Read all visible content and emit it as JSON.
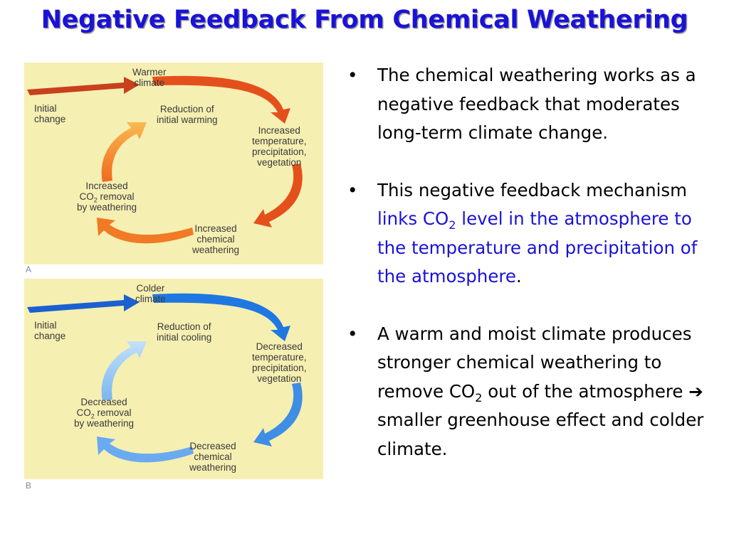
{
  "title": "Negative Feedback From Chemical Weathering",
  "colors": {
    "title": "#1a12d6",
    "highlight": "#1a12d6",
    "panel_bg": "#f6efb2",
    "warm_arrow": "#e04a18",
    "warm_arrow_light": "#f59a2a",
    "cold_arrow": "#1e74e0",
    "cold_arrow_light": "#8cc0f2"
  },
  "diagram_a": {
    "panel_label": "A",
    "initial_change": "Initial\nchange",
    "top": "Warmer\nclimate",
    "right": "Increased\ntemperature,\nprecipitation,\nvegetation",
    "bottom": "Increased\nchemical\nweathering",
    "left_prefix": "Increased\nCO",
    "left_sub": "2",
    "left_suffix": " removal\nby weathering",
    "center": "Reduction of\ninitial warming"
  },
  "diagram_b": {
    "panel_label": "B",
    "initial_change": "Initial\nchange",
    "top": "Colder\nclimate",
    "right": "Decreased\ntemperature,\nprecipitation,\nvegetation",
    "bottom": "Decreased\nchemical\nweathering",
    "left_prefix": "Decreased\nCO",
    "left_sub": "2",
    "left_suffix": " removal\nby weathering",
    "center": "Reduction of\ninitial cooling"
  },
  "bullets": {
    "b1": "The chemical weathering works as a negative feedback that moderates long-term climate change.",
    "b2_pre": "This negative feedback mechanism ",
    "b2_hl1": "links CO",
    "b2_sub": "2",
    "b2_hl2": " level in the atmosphere to the temperature and precipitation of the atmosphere",
    "b2_post": ".",
    "b3_pre": "A warm and moist climate produces stronger chemical weathering to remove CO",
    "b3_sub": "2",
    "b3_mid": " out of the atmosphere ",
    "b3_arrow": "➔",
    "b3_post": " smaller greenhouse effect and colder climate.",
    "marker": "•"
  }
}
